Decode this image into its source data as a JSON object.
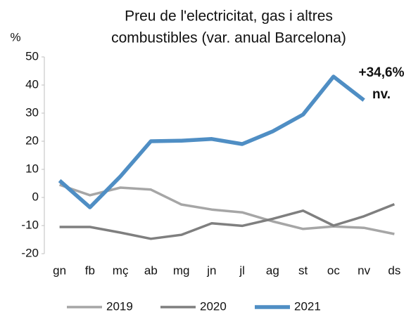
{
  "chart_data": {
    "type": "line",
    "title": [
      "Preu de l'electricitat, gas i altres",
      "combustibles (var. anual Barcelona)"
    ],
    "y_label": "%",
    "categories": [
      "gn",
      "fb",
      "mç",
      "ab",
      "mg",
      "jn",
      "jl",
      "ag",
      "st",
      "oc",
      "nv",
      "ds"
    ],
    "series": [
      {
        "name": "2019",
        "color": "#a6a6a6",
        "values": [
          4.5,
          0.8,
          3.5,
          2.8,
          -2.5,
          -4.3,
          -5.3,
          -8.5,
          -11.2,
          -10.3,
          -10.8,
          -13
        ]
      },
      {
        "name": "2020",
        "color": "#7f7f7f",
        "values": [
          -10.5,
          -10.5,
          -12.5,
          -14.7,
          -13.3,
          -9.2,
          -10.1,
          -7.6,
          -4.7,
          -10,
          -6.7,
          -2.4
        ]
      },
      {
        "name": "2021",
        "color": "#4f8ec4",
        "values": [
          6,
          -3.5,
          7.5,
          20,
          20.2,
          20.8,
          19,
          23.5,
          29.5,
          43,
          34.6,
          null
        ]
      }
    ],
    "annotations": [
      "+34,6%",
      "nv."
    ],
    "ylim": [
      -20,
      50
    ],
    "yticks": [
      -20,
      -10,
      0,
      10,
      20,
      30,
      40,
      50
    ],
    "legend": "bottom"
  }
}
